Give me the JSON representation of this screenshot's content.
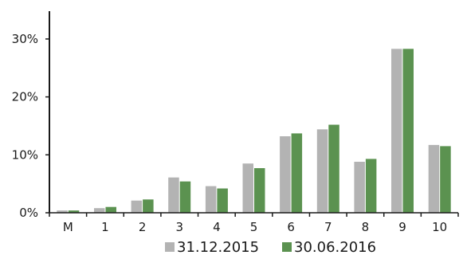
{
  "chart_data": {
    "type": "bar",
    "title": "",
    "xlabel": "",
    "ylabel": "",
    "categories": [
      "M",
      "1",
      "2",
      "3",
      "4",
      "5",
      "6",
      "7",
      "8",
      "9",
      "10"
    ],
    "series": [
      {
        "name": "31.12.2015",
        "color": "#b3b3b3",
        "values": [
          0.4,
          0.8,
          2.1,
          6.1,
          4.6,
          8.5,
          13.2,
          14.4,
          8.8,
          28.3,
          11.7
        ]
      },
      {
        "name": "30.06.2016",
        "color": "#5b9250",
        "values": [
          0.4,
          1.0,
          2.3,
          5.4,
          4.2,
          7.7,
          13.7,
          15.2,
          9.3,
          28.3,
          11.5
        ]
      }
    ],
    "yticks": [
      0,
      10,
      20,
      30
    ],
    "ytick_labels": [
      "0%",
      "10%",
      "20%",
      "30%"
    ],
    "ylim": [
      0,
      35
    ],
    "grid": false,
    "legend_position": "bottom"
  }
}
